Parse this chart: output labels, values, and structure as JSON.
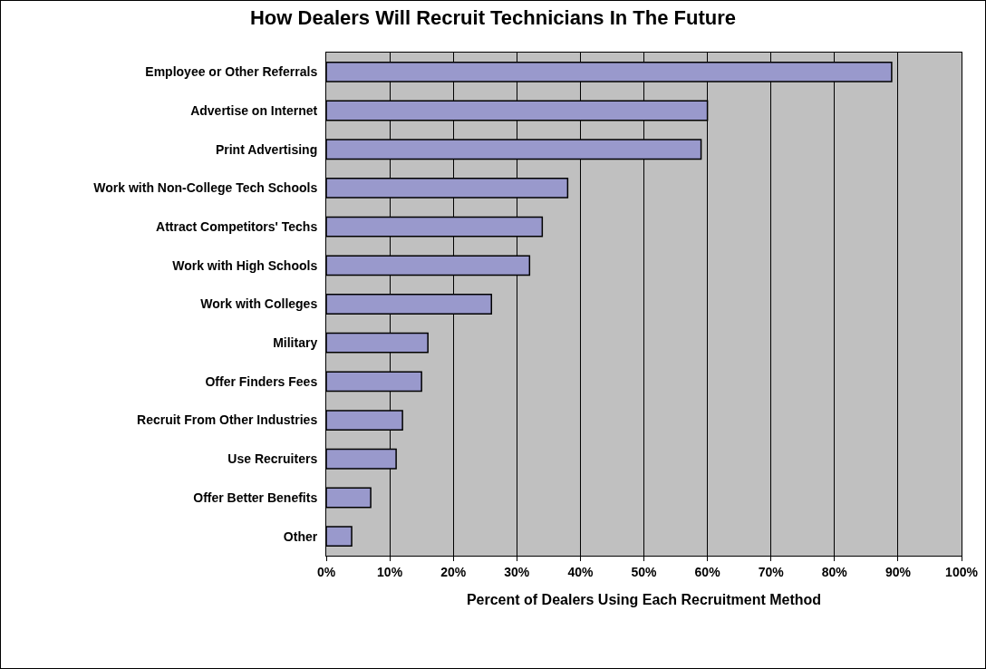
{
  "chart_data": {
    "type": "bar",
    "orientation": "horizontal",
    "title": "How Dealers Will Recruit Technicians In The Future",
    "xlabel": "Percent of Dealers Using Each Recruitment Method",
    "categories": [
      "Employee or Other Referrals",
      "Advertise on Internet",
      "Print Advertising",
      "Work with Non-College Tech Schools",
      "Attract Competitors' Techs",
      "Work with High Schools",
      "Work with Colleges",
      "Military",
      "Offer Finders Fees",
      "Recruit From Other Industries",
      "Use Recruiters",
      "Offer Better Benefits",
      "Other"
    ],
    "values": [
      89,
      60,
      59,
      38,
      34,
      32,
      26,
      16,
      15,
      12,
      11,
      7,
      4
    ],
    "color": "#9999cc",
    "xlim": [
      0,
      100
    ],
    "xticks": [
      {
        "value": 0,
        "label": "0%"
      },
      {
        "value": 10,
        "label": "10%"
      },
      {
        "value": 20,
        "label": "20%"
      },
      {
        "value": 30,
        "label": "30%"
      },
      {
        "value": 40,
        "label": "40%"
      },
      {
        "value": 50,
        "label": "50%"
      },
      {
        "value": 60,
        "label": "60%"
      },
      {
        "value": 70,
        "label": "70%"
      },
      {
        "value": 80,
        "label": "80%"
      },
      {
        "value": 90,
        "label": "90%"
      },
      {
        "value": 100,
        "label": "100%"
      }
    ],
    "grid": "x"
  }
}
